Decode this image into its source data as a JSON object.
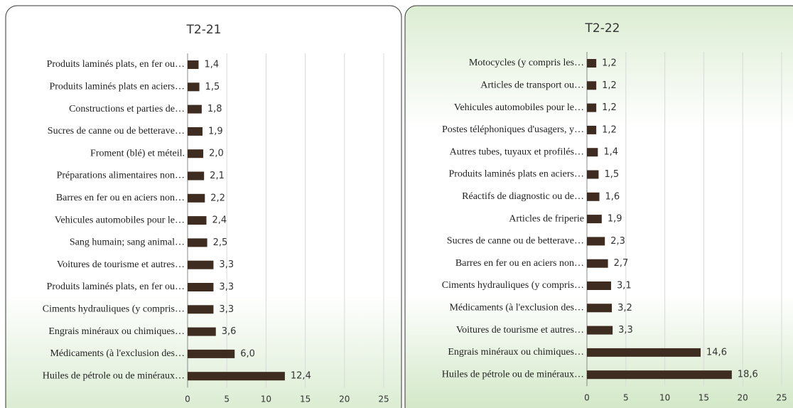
{
  "chart_data": [
    {
      "type": "bar",
      "orientation": "horizontal",
      "title": "T2-21",
      "color": "#3e2c20",
      "grid": true,
      "categories": [
        "Produits laminés plats, en fer ou…",
        "Produits laminés plats en aciers…",
        "Constructions et parties de…",
        "Sucres de canne ou de betterave…",
        "Froment (blé) et méteil.",
        "Préparations alimentaires non…",
        "Barres en fer ou en aciers non…",
        "Vehicules automobiles pour le…",
        "Sang humain; sang animal…",
        "Voitures de tourisme et autres…",
        "Produits laminés plats, en fer ou…",
        "Ciments hydrauliques (y compris…",
        "Engrais minéraux ou chimiques…",
        "Médicaments (à l'exclusion des…",
        "Huiles de pétrole ou de minéraux…"
      ],
      "values": [
        1.4,
        1.5,
        1.8,
        1.9,
        2.0,
        2.1,
        2.2,
        2.4,
        2.5,
        3.3,
        3.3,
        3.3,
        3.6,
        6.0,
        12.4
      ],
      "value_labels": [
        "1,4",
        "1,5",
        "1,8",
        "1,9",
        "2,0",
        "2,1",
        "2,2",
        "2,4",
        "2,5",
        "3,3",
        "3,3",
        "3,3",
        "3,6",
        "6,0",
        "12,4"
      ],
      "xlim": [
        0,
        25
      ],
      "xticks": [
        0,
        5,
        10,
        15,
        20,
        25
      ]
    },
    {
      "type": "bar",
      "orientation": "horizontal",
      "title": "T2-22",
      "color": "#3e2c20",
      "grid": true,
      "categories": [
        "Motocycles (y compris les…",
        "Articles de transport ou…",
        "Vehicules automobiles pour le…",
        "Postes téléphoniques d'usagers, y…",
        "Autres tubes, tuyaux et profilés…",
        "Produits laminés plats en aciers…",
        "Réactifs de diagnostic ou de…",
        "Articles de friperie",
        "Sucres de canne ou de betterave…",
        "Barres en fer ou en aciers non…",
        "Ciments hydrauliques (y compris…",
        "Médicaments (à l'exclusion des…",
        "Voitures de tourisme et autres…",
        "Engrais minéraux ou chimiques…",
        "Huiles de pétrole ou de minéraux…"
      ],
      "values": [
        1.2,
        1.2,
        1.2,
        1.2,
        1.4,
        1.5,
        1.6,
        1.9,
        2.3,
        2.7,
        3.1,
        3.2,
        3.3,
        14.6,
        18.6
      ],
      "value_labels": [
        "1,2",
        "1,2",
        "1,2",
        "1,2",
        "1,4",
        "1,5",
        "1,6",
        "1,9",
        "2,3",
        "2,7",
        "3,1",
        "3,2",
        "3,3",
        "14,6",
        "18,6"
      ],
      "xlim": [
        0,
        25
      ],
      "xticks": [
        0,
        5,
        10,
        15,
        20,
        25
      ]
    }
  ]
}
